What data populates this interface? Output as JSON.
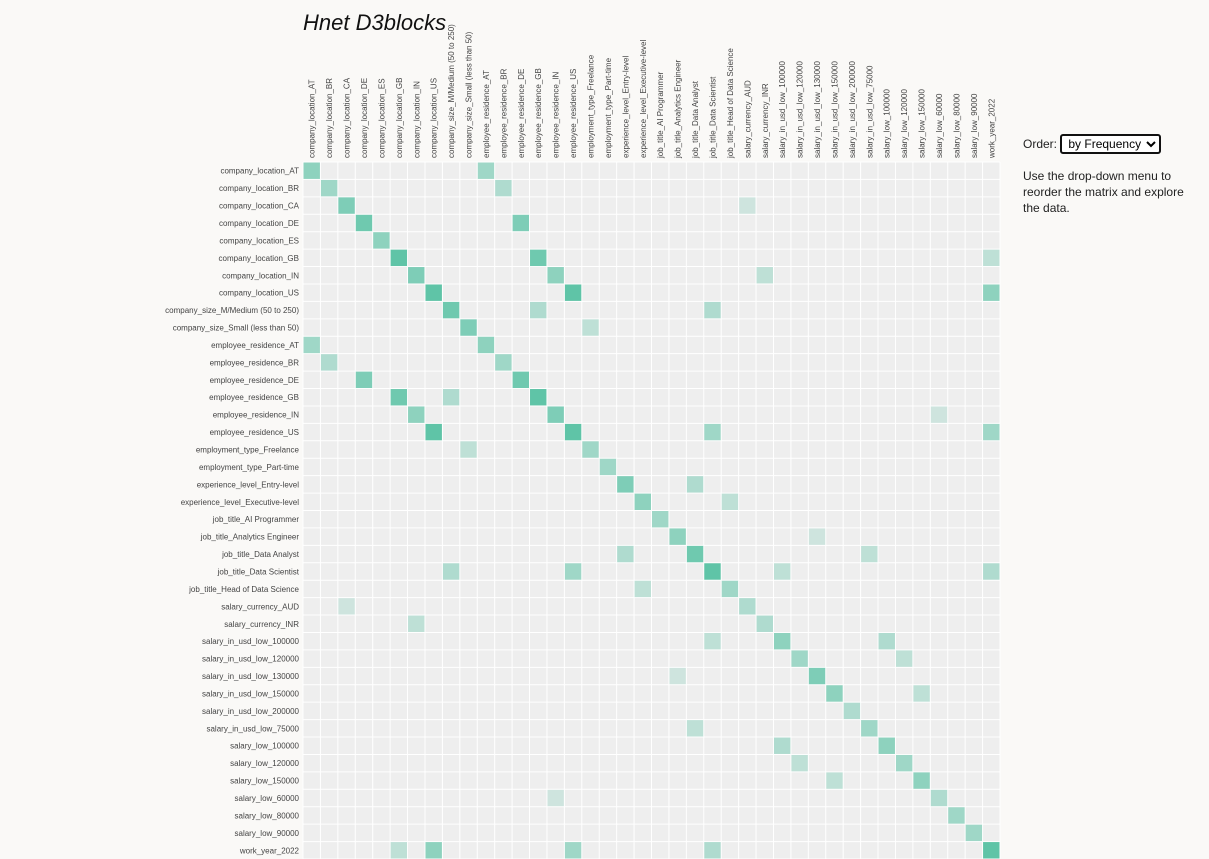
{
  "title": "Hnet D3blocks",
  "controls": {
    "order_label": "Order:",
    "order_option": "by Frequency",
    "help": "Use the drop-down menu to reorder the matrix and explore the data."
  },
  "nodes": [
    "company_location_AT",
    "company_location_BR",
    "company_location_CA",
    "company_location_DE",
    "company_location_ES",
    "company_location_GB",
    "company_location_IN",
    "company_location_US",
    "company_size_M/Medium (50 to 250)",
    "company_size_Small (less than 50)",
    "employee_residence_AT",
    "employee_residence_BR",
    "employee_residence_DE",
    "employee_residence_GB",
    "employee_residence_IN",
    "employee_residence_US",
    "employment_type_Freelance",
    "employment_type_Part-time",
    "experience_level_Entry-level",
    "experience_level_Executive-level",
    "job_title_AI Programmer",
    "job_title_Analytics Engineer",
    "job_title_Data Analyst",
    "job_title_Data Scientist",
    "job_title_Head of Data Science",
    "salary_currency_AUD",
    "salary_currency_INR",
    "salary_in_usd_low_100000",
    "salary_in_usd_low_120000",
    "salary_in_usd_low_130000",
    "salary_in_usd_low_150000",
    "salary_in_usd_low_200000",
    "salary_in_usd_low_75000",
    "salary_low_100000",
    "salary_low_120000",
    "salary_low_150000",
    "salary_low_60000",
    "salary_low_80000",
    "salary_low_90000",
    "work_year_2022"
  ],
  "links": [
    [
      0,
      0,
      0.6
    ],
    [
      1,
      1,
      0.5
    ],
    [
      2,
      2,
      0.7
    ],
    [
      3,
      3,
      0.8
    ],
    [
      4,
      4,
      0.6
    ],
    [
      5,
      5,
      0.9
    ],
    [
      6,
      6,
      0.7
    ],
    [
      7,
      7,
      0.9
    ],
    [
      8,
      8,
      0.8
    ],
    [
      9,
      9,
      0.7
    ],
    [
      10,
      10,
      0.6
    ],
    [
      11,
      11,
      0.5
    ],
    [
      12,
      12,
      0.8
    ],
    [
      13,
      13,
      0.9
    ],
    [
      14,
      14,
      0.7
    ],
    [
      15,
      15,
      0.9
    ],
    [
      16,
      16,
      0.5
    ],
    [
      17,
      17,
      0.5
    ],
    [
      18,
      18,
      0.7
    ],
    [
      19,
      19,
      0.6
    ],
    [
      20,
      20,
      0.5
    ],
    [
      21,
      21,
      0.6
    ],
    [
      22,
      22,
      0.8
    ],
    [
      23,
      23,
      0.9
    ],
    [
      24,
      24,
      0.5
    ],
    [
      25,
      25,
      0.4
    ],
    [
      26,
      26,
      0.4
    ],
    [
      27,
      27,
      0.6
    ],
    [
      28,
      28,
      0.5
    ],
    [
      29,
      29,
      0.7
    ],
    [
      30,
      30,
      0.6
    ],
    [
      31,
      31,
      0.4
    ],
    [
      32,
      32,
      0.5
    ],
    [
      33,
      33,
      0.6
    ],
    [
      34,
      34,
      0.5
    ],
    [
      35,
      35,
      0.6
    ],
    [
      36,
      36,
      0.4
    ],
    [
      37,
      37,
      0.5
    ],
    [
      38,
      38,
      0.5
    ],
    [
      39,
      39,
      0.9
    ],
    [
      0,
      10,
      0.5
    ],
    [
      1,
      11,
      0.4
    ],
    [
      3,
      12,
      0.7
    ],
    [
      5,
      13,
      0.8
    ],
    [
      6,
      14,
      0.6
    ],
    [
      7,
      15,
      0.9
    ],
    [
      7,
      39,
      0.6
    ],
    [
      8,
      23,
      0.4
    ],
    [
      9,
      16,
      0.3
    ],
    [
      13,
      8,
      0.4
    ],
    [
      15,
      23,
      0.5
    ],
    [
      15,
      39,
      0.5
    ],
    [
      18,
      22,
      0.4
    ],
    [
      19,
      24,
      0.3
    ],
    [
      22,
      32,
      0.3
    ],
    [
      23,
      27,
      0.3
    ],
    [
      27,
      33,
      0.4
    ],
    [
      28,
      34,
      0.3
    ],
    [
      30,
      35,
      0.3
    ],
    [
      6,
      26,
      0.3
    ],
    [
      2,
      25,
      0.2
    ],
    [
      23,
      39,
      0.4
    ],
    [
      5,
      39,
      0.3
    ],
    [
      14,
      36,
      0.2
    ],
    [
      21,
      29,
      0.2
    ]
  ]
}
